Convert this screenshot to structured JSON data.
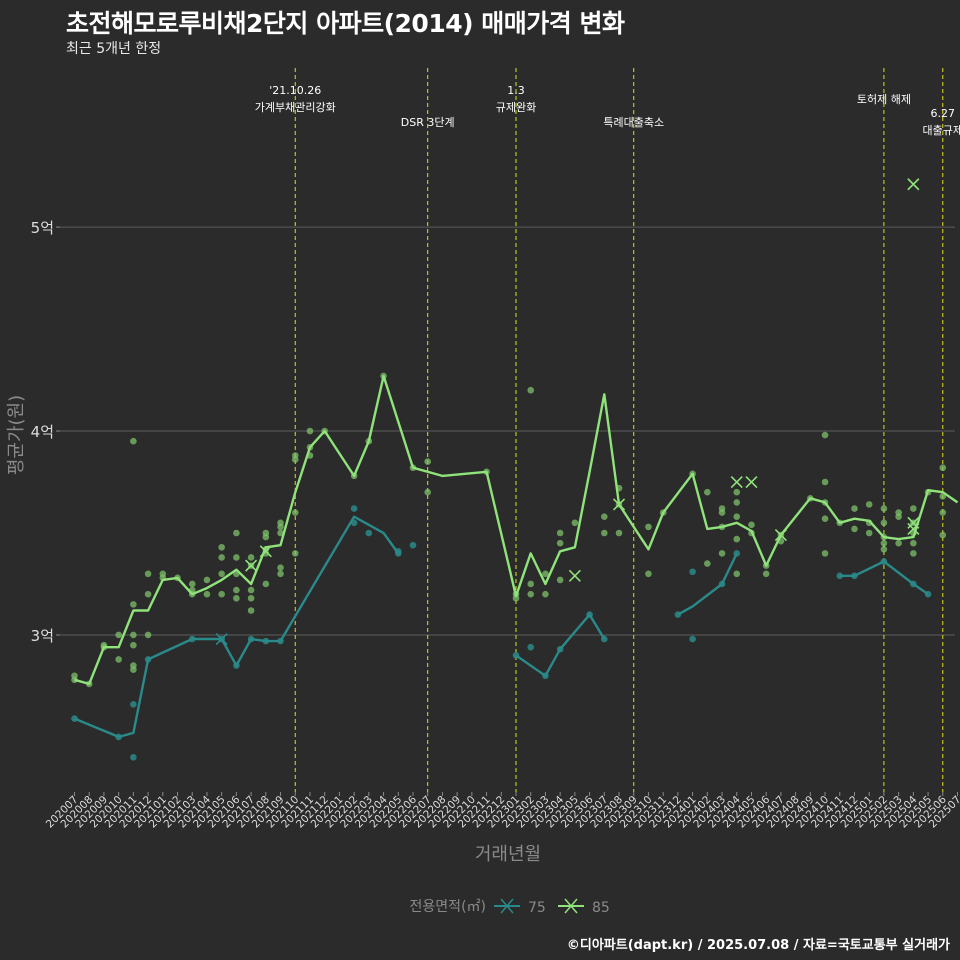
{
  "title": "초전해모로루비채2단지 아파트(2014) 매매가격 변화",
  "subtitle": "최근 5개년 한정",
  "caption": "©디아파트(dapt.kr) / 2025.07.08 / 자료=국토교통부 실거래가",
  "colors": {
    "background": "#2b2b2b",
    "grid": "#5c5c5c",
    "series_75": "#2a8a8a",
    "series_85": "#8fe37a",
    "dots_85": "#7ec26a",
    "event_line": "#d9e021"
  },
  "chart_data": {
    "type": "line",
    "xlabel": "거래년월",
    "ylabel": "평균가(원)",
    "x": [
      "202007",
      "202008",
      "202009",
      "202010",
      "202011",
      "202012",
      "202101",
      "202102",
      "202103",
      "202104",
      "202105",
      "202106",
      "202107",
      "202108",
      "202109",
      "202110",
      "202111",
      "202112",
      "202201",
      "202202",
      "202203",
      "202204",
      "202205",
      "202206",
      "202207",
      "202208",
      "202209",
      "202210",
      "202211",
      "202212",
      "202301",
      "202302",
      "202303",
      "202304",
      "202305",
      "202306",
      "202307",
      "202308",
      "202309",
      "202310",
      "202311",
      "202312",
      "202401",
      "202402",
      "202403",
      "202404",
      "202405",
      "202406",
      "202407",
      "202408",
      "202409",
      "202410",
      "202411",
      "202412",
      "202501",
      "202502",
      "202503",
      "202504",
      "202505",
      "202506",
      "202507"
    ],
    "yticks": [
      {
        "value": 3,
        "label": "3억"
      },
      {
        "value": 4,
        "label": "4억"
      },
      {
        "value": 5,
        "label": "5억"
      }
    ],
    "ylim": [
      2.23,
      5.78
    ],
    "legend": {
      "title": "전용면적(㎡)",
      "placement": "bottom",
      "items": [
        "75",
        "85"
      ]
    },
    "series": [
      {
        "name": "75",
        "color": "#2a8a8a",
        "segments": [
          [
            [
              "202007",
              2.59
            ],
            [
              "202010",
              2.5
            ],
            [
              "202011",
              2.52
            ],
            [
              "202012",
              2.88
            ],
            [
              "202103",
              2.98
            ],
            [
              "202105",
              2.98
            ],
            [
              "202106",
              2.85
            ],
            [
              "202107",
              2.98
            ],
            [
              "202108",
              2.97
            ],
            [
              "202109",
              2.97
            ],
            [
              "202202",
              3.58
            ],
            [
              "202204",
              3.5
            ],
            [
              "202205",
              3.4
            ]
          ],
          [
            [
              "202301",
              2.9
            ],
            [
              "202303",
              2.8
            ],
            [
              "202304",
              2.93
            ],
            [
              "202306",
              3.1
            ],
            [
              "202307",
              2.98
            ]
          ],
          [
            [
              "202312",
              3.1
            ],
            [
              "202401",
              3.14
            ],
            [
              "202403",
              3.25
            ],
            [
              "202404",
              3.4
            ]
          ],
          [
            [
              "202411",
              3.29
            ],
            [
              "202412",
              3.29
            ],
            [
              "202502",
              3.36
            ],
            [
              "202504",
              3.25
            ],
            [
              "202505",
              3.2
            ]
          ]
        ]
      },
      {
        "name": "85",
        "color": "#8fe37a",
        "segments": [
          [
            [
              "202007",
              2.78
            ],
            [
              "202008",
              2.76
            ],
            [
              "202009",
              2.94
            ],
            [
              "202010",
              2.94
            ],
            [
              "202011",
              3.12
            ],
            [
              "202012",
              3.12
            ],
            [
              "202101",
              3.27
            ],
            [
              "202102",
              3.28
            ],
            [
              "202103",
              3.2
            ],
            [
              "202104",
              3.23
            ],
            [
              "202105",
              3.27
            ],
            [
              "202106",
              3.32
            ],
            [
              "202107",
              3.25
            ],
            [
              "202108",
              3.43
            ],
            [
              "202109",
              3.44
            ],
            [
              "202110",
              3.7
            ],
            [
              "202111",
              3.92
            ],
            [
              "202112",
              4.0
            ],
            [
              "202201",
              3.89
            ],
            [
              "202202",
              3.78
            ],
            [
              "202203",
              3.95
            ],
            [
              "202204",
              4.27
            ],
            [
              "202206",
              3.82
            ],
            [
              "202208",
              3.78
            ],
            [
              "202211",
              3.8
            ],
            [
              "202301",
              3.19
            ],
            [
              "202302",
              3.4
            ],
            [
              "202303",
              3.25
            ],
            [
              "202304",
              3.41
            ],
            [
              "202305",
              3.43
            ],
            [
              "202306",
              3.8
            ],
            [
              "202307",
              4.18
            ],
            [
              "202308",
              3.64
            ],
            [
              "202310",
              3.42
            ],
            [
              "202311",
              3.6
            ],
            [
              "202401",
              3.79
            ],
            [
              "202402",
              3.52
            ],
            [
              "202403",
              3.53
            ],
            [
              "202404",
              3.55
            ],
            [
              "202405",
              3.51
            ],
            [
              "202406",
              3.34
            ],
            [
              "202407",
              3.49
            ],
            [
              "202409",
              3.67
            ],
            [
              "202410",
              3.65
            ],
            [
              "202411",
              3.55
            ],
            [
              "202412",
              3.57
            ],
            [
              "202501",
              3.56
            ],
            [
              "202502",
              3.48
            ],
            [
              "202503",
              3.47
            ],
            [
              "202504",
              3.48
            ],
            [
              "202505",
              3.71
            ],
            [
              "202506",
              3.7
            ],
            [
              "202507",
              3.65
            ]
          ]
        ]
      }
    ],
    "points_85": [
      [
        "202007",
        2.78
      ],
      [
        "202007",
        2.8
      ],
      [
        "202008",
        2.76
      ],
      [
        "202009",
        2.94
      ],
      [
        "202009",
        2.95
      ],
      [
        "202010",
        2.88
      ],
      [
        "202010",
        3.0
      ],
      [
        "202011",
        2.83
      ],
      [
        "202011",
        2.85
      ],
      [
        "202011",
        2.95
      ],
      [
        "202011",
        3.0
      ],
      [
        "202011",
        3.15
      ],
      [
        "202011",
        3.95
      ],
      [
        "202012",
        3.0
      ],
      [
        "202012",
        3.2
      ],
      [
        "202012",
        3.3
      ],
      [
        "202101",
        3.28
      ],
      [
        "202101",
        3.3
      ],
      [
        "202102",
        3.28
      ],
      [
        "202103",
        3.2
      ],
      [
        "202103",
        3.22
      ],
      [
        "202103",
        3.25
      ],
      [
        "202104",
        3.2
      ],
      [
        "202104",
        3.27
      ],
      [
        "202105",
        3.2
      ],
      [
        "202105",
        3.3
      ],
      [
        "202105",
        3.38
      ],
      [
        "202105",
        3.43
      ],
      [
        "202106",
        3.18
      ],
      [
        "202106",
        3.22
      ],
      [
        "202106",
        3.3
      ],
      [
        "202106",
        3.38
      ],
      [
        "202106",
        3.5
      ],
      [
        "202107",
        3.12
      ],
      [
        "202107",
        3.18
      ],
      [
        "202107",
        3.22
      ],
      [
        "202107",
        3.34
      ],
      [
        "202107",
        3.38
      ],
      [
        "202108",
        3.25
      ],
      [
        "202108",
        3.4
      ],
      [
        "202108",
        3.42
      ],
      [
        "202108",
        3.48
      ],
      [
        "202108",
        3.5
      ],
      [
        "202109",
        3.3
      ],
      [
        "202109",
        3.33
      ],
      [
        "202109",
        3.5
      ],
      [
        "202109",
        3.53
      ],
      [
        "202109",
        3.55
      ],
      [
        "202110",
        3.4
      ],
      [
        "202110",
        3.6
      ],
      [
        "202110",
        3.86
      ],
      [
        "202110",
        3.88
      ],
      [
        "202111",
        3.88
      ],
      [
        "202111",
        3.92
      ],
      [
        "202111",
        4.0
      ],
      [
        "202112",
        4.0
      ],
      [
        "202202",
        3.78
      ],
      [
        "202203",
        3.95
      ],
      [
        "202204",
        4.27
      ],
      [
        "202206",
        3.82
      ],
      [
        "202207",
        3.85
      ],
      [
        "202207",
        3.7
      ],
      [
        "202211",
        3.8
      ],
      [
        "202301",
        3.18
      ],
      [
        "202301",
        3.2
      ],
      [
        "202302",
        4.2
      ],
      [
        "202302",
        3.2
      ],
      [
        "202302",
        3.25
      ],
      [
        "202303",
        3.2
      ],
      [
        "202303",
        3.3
      ],
      [
        "202304",
        3.27
      ],
      [
        "202304",
        3.45
      ],
      [
        "202304",
        3.5
      ],
      [
        "202305",
        3.55
      ],
      [
        "202307",
        3.5
      ],
      [
        "202307",
        3.58
      ],
      [
        "202308",
        3.72
      ],
      [
        "202308",
        3.5
      ],
      [
        "202308",
        3.64
      ],
      [
        "202310",
        3.53
      ],
      [
        "202310",
        3.3
      ],
      [
        "202311",
        3.6
      ],
      [
        "202401",
        3.79
      ],
      [
        "202402",
        3.7
      ],
      [
        "202402",
        3.35
      ],
      [
        "202403",
        3.4
      ],
      [
        "202403",
        3.53
      ],
      [
        "202403",
        3.6
      ],
      [
        "202403",
        3.62
      ],
      [
        "202404",
        3.7
      ],
      [
        "202404",
        3.65
      ],
      [
        "202404",
        3.58
      ],
      [
        "202404",
        3.47
      ],
      [
        "202404",
        3.3
      ],
      [
        "202405",
        3.54
      ],
      [
        "202405",
        3.5
      ],
      [
        "202406",
        3.3
      ],
      [
        "202406",
        3.34
      ],
      [
        "202407",
        3.49
      ],
      [
        "202407",
        3.46
      ],
      [
        "202409",
        3.67
      ],
      [
        "202410",
        3.98
      ],
      [
        "202410",
        3.75
      ],
      [
        "202410",
        3.65
      ],
      [
        "202410",
        3.57
      ],
      [
        "202410",
        3.4
      ],
      [
        "202411",
        3.55
      ],
      [
        "202412",
        3.62
      ],
      [
        "202412",
        3.52
      ],
      [
        "202501",
        3.64
      ],
      [
        "202501",
        3.55
      ],
      [
        "202501",
        3.5
      ],
      [
        "202502",
        3.62
      ],
      [
        "202502",
        3.55
      ],
      [
        "202502",
        3.48
      ],
      [
        "202502",
        3.45
      ],
      [
        "202502",
        3.42
      ],
      [
        "202503",
        3.58
      ],
      [
        "202503",
        3.6
      ],
      [
        "202503",
        3.45
      ],
      [
        "202504",
        3.62
      ],
      [
        "202504",
        3.55
      ],
      [
        "202504",
        3.5
      ],
      [
        "202504",
        3.45
      ],
      [
        "202504",
        3.4
      ],
      [
        "202505",
        3.7
      ],
      [
        "202506",
        3.82
      ],
      [
        "202506",
        3.68
      ],
      [
        "202506",
        3.6
      ],
      [
        "202506",
        3.49
      ]
    ],
    "points_75": [
      [
        "202007",
        2.59
      ],
      [
        "202010",
        2.5
      ],
      [
        "202011",
        2.4
      ],
      [
        "202011",
        2.66
      ],
      [
        "202012",
        2.88
      ],
      [
        "202103",
        2.98
      ],
      [
        "202105",
        2.98
      ],
      [
        "202106",
        2.85
      ],
      [
        "202107",
        2.98
      ],
      [
        "202108",
        2.97
      ],
      [
        "202109",
        2.97
      ],
      [
        "202202",
        3.62
      ],
      [
        "202202",
        3.55
      ],
      [
        "202203",
        3.5
      ],
      [
        "202205",
        3.4
      ],
      [
        "202205",
        3.41
      ],
      [
        "202206",
        3.44
      ],
      [
        "202301",
        2.9
      ],
      [
        "202302",
        2.94
      ],
      [
        "202303",
        2.8
      ],
      [
        "202304",
        2.93
      ],
      [
        "202306",
        3.1
      ],
      [
        "202307",
        2.98
      ],
      [
        "202312",
        3.1
      ],
      [
        "202401",
        3.31
      ],
      [
        "202401",
        2.98
      ],
      [
        "202403",
        3.25
      ],
      [
        "202404",
        3.4
      ],
      [
        "202411",
        3.29
      ],
      [
        "202412",
        3.29
      ],
      [
        "202502",
        3.36
      ],
      [
        "202504",
        3.25
      ],
      [
        "202505",
        3.2
      ]
    ],
    "x_markers_85": [
      [
        "202107",
        3.34
      ],
      [
        "202108",
        3.41
      ],
      [
        "202305",
        3.29
      ],
      [
        "202308",
        3.64
      ],
      [
        "202404",
        3.75
      ],
      [
        "202405",
        3.75
      ],
      [
        "202407",
        3.49
      ],
      [
        "202504",
        5.21
      ],
      [
        "202504",
        3.55
      ],
      [
        "202504",
        3.52
      ]
    ],
    "x_markers_75": [
      [
        "202105",
        2.98
      ]
    ],
    "events": [
      {
        "x": "202110",
        "lines": [
          "'21.10.26",
          "가계부채관리강화"
        ],
        "row": 1
      },
      {
        "x": "202207",
        "lines": [
          "DSR 3단계"
        ],
        "row": 2
      },
      {
        "x": "202301",
        "lines": [
          "1.3",
          "규제완화"
        ],
        "row": 1
      },
      {
        "x": "202309",
        "lines": [
          "특례대출축소"
        ],
        "row": 2
      },
      {
        "x": "202502",
        "lines": [
          "토허제 해제"
        ],
        "row": 1.5
      },
      {
        "x": "202506",
        "lines": [
          "6.27",
          "대출규제"
        ],
        "row": 2
      }
    ]
  }
}
